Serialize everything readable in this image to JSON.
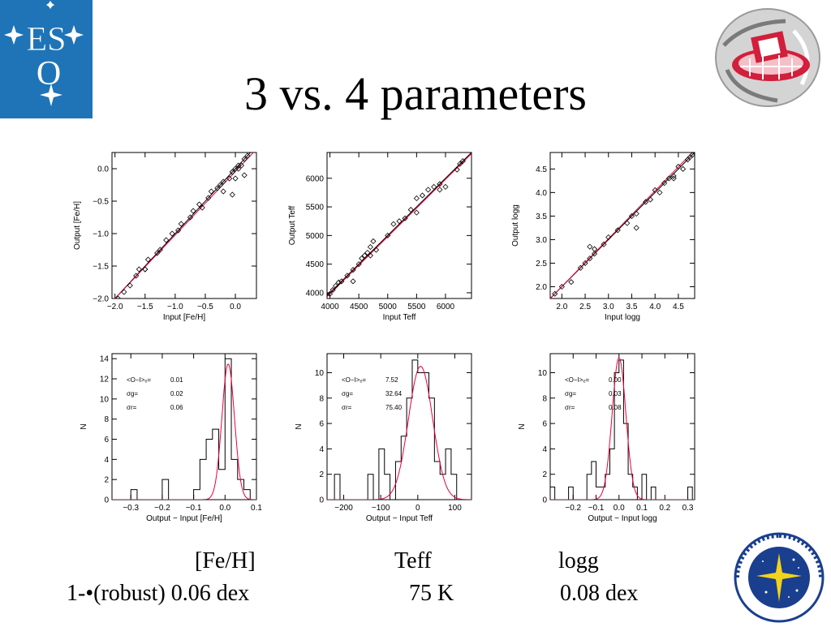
{
  "slide": {
    "title": "3 vs. 4 parameters",
    "columns": {
      "feh": "[Fe/H]",
      "teff": "Teff",
      "logg": "logg"
    },
    "row_label": "1-•(robust) 0.06 dex",
    "teff_value": "75 K",
    "logg_value": "0.08 dex"
  },
  "logos": {
    "eso_letters": [
      "ES",
      "O"
    ]
  },
  "colors": {
    "eso_blue": "#1f74b8",
    "fit_line": "#e8003c",
    "telescope_red": "#d21f3c"
  },
  "chart_data": [
    {
      "id": "scatter-feh",
      "type": "scatter",
      "xlabel": "Input [Fe/H]",
      "ylabel": "Output [Fe/H]",
      "xlim": [
        -2.05,
        0.35
      ],
      "ylim": [
        -2.0,
        0.25
      ],
      "xticks": [
        -2.0,
        -1.5,
        -1.0,
        -0.5,
        0.0
      ],
      "xtick_labels": [
        "−2.0",
        "−1.5",
        "−1.0",
        "−0.5",
        "0.0"
      ],
      "yticks": [
        -2.0,
        -1.5,
        -1.0,
        -0.5,
        0.0
      ],
      "ytick_labels": [
        "−2.0",
        "−1.5",
        "−1.0",
        "−0.5",
        "0.0"
      ],
      "x": [
        -1.95,
        -1.85,
        -1.75,
        -1.65,
        -1.6,
        -1.5,
        -1.45,
        -1.3,
        -1.25,
        -1.15,
        -1.05,
        -0.95,
        -0.9,
        -0.75,
        -0.7,
        -0.6,
        -0.55,
        -0.45,
        -0.4,
        -0.3,
        -0.25,
        -0.2,
        -0.1,
        -0.05,
        0.0,
        0.05,
        0.1,
        0.15,
        0.2,
        0.15,
        -0.05,
        0.0,
        -0.2,
        -1.5,
        -0.05,
        0.05
      ],
      "y": [
        -2.0,
        -1.9,
        -1.8,
        -1.65,
        -1.55,
        -1.55,
        -1.4,
        -1.3,
        -1.25,
        -1.1,
        -1.0,
        -0.95,
        -0.85,
        -0.75,
        -0.65,
        -0.55,
        -0.6,
        -0.45,
        -0.35,
        -0.3,
        -0.25,
        -0.2,
        -0.15,
        -0.05,
        0.0,
        0.05,
        0.05,
        0.15,
        0.2,
        -0.1,
        -0.4,
        -0.15,
        -0.35,
        -1.55,
        -0.05,
        0.0
      ],
      "fit": [
        [
          -2.05,
          -2.05
        ],
        [
          0.35,
          0.3
        ]
      ],
      "identity": [
        [
          -2.05,
          -2.05
        ],
        [
          0.35,
          0.35
        ]
      ]
    },
    {
      "id": "scatter-teff",
      "type": "scatter",
      "xlabel": "Input Teff",
      "ylabel": "Output Teff",
      "xlim": [
        3950,
        6450
      ],
      "ylim": [
        3900,
        6450
      ],
      "xticks": [
        4000,
        4500,
        5000,
        5500,
        6000
      ],
      "xtick_labels": [
        "4000",
        "4500",
        "5000",
        "5500",
        "6000"
      ],
      "yticks": [
        4000,
        4500,
        5000,
        5500,
        6000
      ],
      "ytick_labels": [
        "4000",
        "4500",
        "5000",
        "5500",
        "6000"
      ],
      "x": [
        4000,
        4050,
        4100,
        4150,
        4200,
        4300,
        4400,
        4500,
        4550,
        4600,
        4650,
        4700,
        4750,
        4800,
        5000,
        5100,
        5200,
        5300,
        5400,
        5500,
        5600,
        5700,
        5800,
        5900,
        6000,
        6200,
        6250,
        6300,
        4400,
        4700,
        5500,
        5900
      ],
      "y": [
        3980,
        4050,
        4120,
        4180,
        4200,
        4300,
        4400,
        4500,
        4600,
        4650,
        4700,
        4800,
        4900,
        4750,
        5000,
        5200,
        5250,
        5300,
        5450,
        5650,
        5700,
        5800,
        5850,
        5900,
        5850,
        6150,
        6250,
        6300,
        4200,
        4650,
        5400,
        5800
      ],
      "fit": [
        [
          3950,
          3930
        ],
        [
          6450,
          6430
        ]
      ],
      "identity": [
        [
          3950,
          3950
        ],
        [
          6450,
          6450
        ]
      ]
    },
    {
      "id": "scatter-logg",
      "type": "scatter",
      "xlabel": "Input logg",
      "ylabel": "Output logg",
      "xlim": [
        1.75,
        4.85
      ],
      "ylim": [
        1.75,
        4.85
      ],
      "xticks": [
        2.0,
        2.5,
        3.0,
        3.5,
        4.0,
        4.5
      ],
      "xtick_labels": [
        "2.0",
        "2.5",
        "3.0",
        "3.5",
        "4.0",
        "4.5"
      ],
      "yticks": [
        2.0,
        2.5,
        3.0,
        3.5,
        4.0,
        4.5
      ],
      "ytick_labels": [
        "2.0",
        "2.5",
        "3.0",
        "3.5",
        "4.0",
        "4.5"
      ],
      "x": [
        1.85,
        2.0,
        2.2,
        2.4,
        2.5,
        2.6,
        2.7,
        2.9,
        3.0,
        3.2,
        3.4,
        3.5,
        3.6,
        3.8,
        3.9,
        4.0,
        4.1,
        4.2,
        4.3,
        4.4,
        4.5,
        4.6,
        4.7,
        4.75,
        4.8,
        2.6,
        2.7,
        3.6,
        4.4
      ],
      "y": [
        1.85,
        2.0,
        2.1,
        2.4,
        2.5,
        2.6,
        2.7,
        2.9,
        3.05,
        3.2,
        3.35,
        3.5,
        3.55,
        3.8,
        3.85,
        4.05,
        4.0,
        4.2,
        4.3,
        4.35,
        4.55,
        4.5,
        4.7,
        4.75,
        4.8,
        2.85,
        2.8,
        3.25,
        4.3
      ],
      "fit": [
        [
          1.75,
          1.75
        ],
        [
          4.85,
          4.9
        ]
      ],
      "identity": [
        [
          1.75,
          1.75
        ],
        [
          4.85,
          4.85
        ]
      ]
    },
    {
      "id": "hist-feh",
      "type": "histogram",
      "xlabel": "Output − Input [Fe/H]",
      "ylabel": "N",
      "xlim": [
        -0.36,
        0.1
      ],
      "ylim": [
        0,
        14.5
      ],
      "xticks": [
        -0.3,
        -0.2,
        -0.1,
        0.0,
        0.1
      ],
      "xtick_labels": [
        "−0.3",
        "−0.2",
        "−0.1",
        "0.0",
        "0.1"
      ],
      "yticks": [
        0,
        2,
        4,
        6,
        8,
        10,
        12,
        14
      ],
      "ytick_labels": [
        "0",
        "2",
        "4",
        "6",
        "8",
        "10",
        "12",
        "14"
      ],
      "bin_width": 0.02,
      "bins": [
        -0.34,
        -0.32,
        -0.3,
        -0.28,
        -0.26,
        -0.24,
        -0.22,
        -0.2,
        -0.18,
        -0.16,
        -0.14,
        -0.12,
        -0.1,
        -0.08,
        -0.06,
        -0.04,
        -0.02,
        0.0,
        0.02,
        0.04,
        0.06,
        0.08
      ],
      "counts": [
        0,
        0,
        1,
        0,
        0,
        0,
        0,
        2,
        0,
        0,
        0,
        0,
        1,
        4,
        6,
        7,
        3,
        14,
        4,
        2,
        1,
        0
      ],
      "gauss": {
        "mu": 0.01,
        "sigma": 0.02,
        "amp": 13.5
      },
      "stats": {
        "mean_label": "<O−I>ₑ=",
        "mean_value": "0.01",
        "sigma_g_label": "σg=",
        "sigma_g_value": "0.02",
        "sigma_r_label": "σr=",
        "sigma_r_value": "0.06"
      }
    },
    {
      "id": "hist-teff",
      "type": "histogram",
      "xlabel": "Output − Input Teff",
      "ylabel": "N",
      "xlim": [
        -245,
        145
      ],
      "ylim": [
        0,
        11.5
      ],
      "xticks": [
        -200,
        -100,
        0,
        100
      ],
      "xtick_labels": [
        "−200",
        "−100",
        "0",
        "100"
      ],
      "yticks": [
        0,
        2,
        4,
        6,
        8,
        10
      ],
      "ytick_labels": [
        "0",
        "2",
        "4",
        "6",
        "8",
        "10"
      ],
      "bin_width": 15,
      "bins": [
        -240,
        -225,
        -210,
        -195,
        -180,
        -165,
        -150,
        -135,
        -120,
        -105,
        -90,
        -75,
        -60,
        -45,
        -30,
        -15,
        0,
        15,
        30,
        45,
        60,
        75,
        90,
        105,
        120
      ],
      "counts": [
        0,
        2,
        0,
        0,
        0,
        0,
        0,
        2,
        0,
        4,
        2,
        0,
        3,
        5,
        8,
        11,
        10,
        10,
        8,
        3,
        2,
        4,
        2,
        0,
        0
      ],
      "gauss": {
        "mu": 7.52,
        "sigma": 32.64,
        "amp": 10.5
      },
      "stats": {
        "mean_label": "<O−I>ₑ=",
        "mean_value": "7.52",
        "sigma_g_label": "σg=",
        "sigma_g_value": "32.64",
        "sigma_r_label": "σr=",
        "sigma_r_value": "75.40"
      }
    },
    {
      "id": "hist-logg",
      "type": "histogram",
      "xlabel": "Output − Input logg",
      "ylabel": "N",
      "xlim": [
        -0.3,
        0.33
      ],
      "ylim": [
        0,
        11.5
      ],
      "xticks": [
        -0.2,
        -0.1,
        0.0,
        0.1,
        0.2,
        0.3
      ],
      "xtick_labels": [
        "−0.2",
        "−0.1",
        "0.0",
        "0.1",
        "0.2",
        "0.3"
      ],
      "yticks": [
        0,
        2,
        4,
        6,
        8,
        10
      ],
      "ytick_labels": [
        "0",
        "2",
        "4",
        "6",
        "8",
        "10"
      ],
      "bin_width": 0.02,
      "bins": [
        -0.3,
        -0.28,
        -0.26,
        -0.24,
        -0.22,
        -0.2,
        -0.18,
        -0.16,
        -0.14,
        -0.12,
        -0.1,
        -0.08,
        -0.06,
        -0.04,
        -0.02,
        0.0,
        0.02,
        0.04,
        0.06,
        0.08,
        0.1,
        0.12,
        0.14,
        0.16,
        0.18,
        0.2,
        0.22,
        0.24,
        0.26,
        0.28,
        0.3
      ],
      "counts": [
        1,
        0,
        0,
        0,
        1,
        0,
        0,
        0,
        2,
        3,
        1,
        1,
        2,
        4,
        10,
        11,
        6,
        2,
        1,
        0,
        2,
        0,
        1,
        0,
        0,
        0,
        0,
        0,
        0,
        0,
        1
      ],
      "gauss": {
        "mu": 0.0,
        "sigma": 0.03,
        "amp": 11.2
      },
      "stats": {
        "mean_label": "<O−I>ₑ=",
        "mean_value": "0.00",
        "sigma_g_label": "σg=",
        "sigma_g_value": "0.03",
        "sigma_r_label": "σr=",
        "sigma_r_value": "0.08"
      }
    }
  ]
}
